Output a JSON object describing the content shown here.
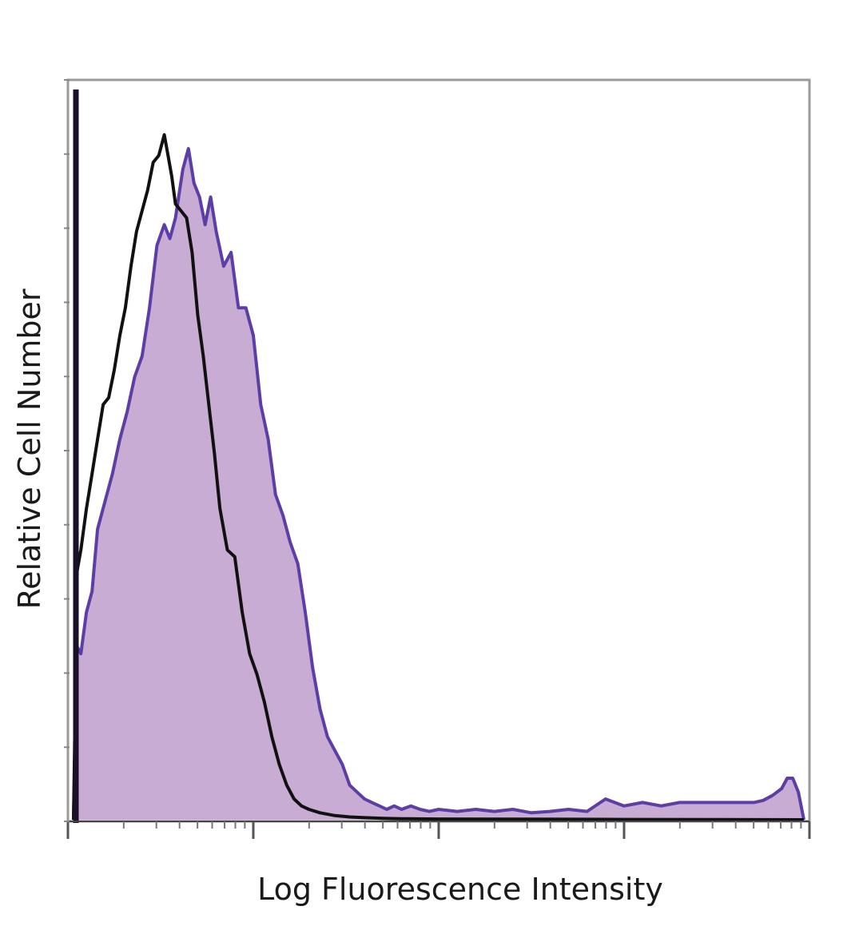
{
  "chart_data": {
    "type": "area",
    "title": "",
    "xlabel": "Log Fluorescence Intensity",
    "ylabel": "Relative Cell Number",
    "xscale": "log",
    "xlim": [
      0,
      4
    ],
    "ylim": [
      0,
      1
    ],
    "grid": false,
    "legend": "none",
    "tick_labels": "none",
    "series": [
      {
        "style": "filled",
        "fill_color": "#c8acd3",
        "line_color": "#5b3fa6",
        "x": [
          0.03,
          0.05,
          0.07,
          0.1,
          0.13,
          0.16,
          0.2,
          0.24,
          0.28,
          0.32,
          0.36,
          0.4,
          0.44,
          0.48,
          0.52,
          0.55,
          0.58,
          0.62,
          0.65,
          0.68,
          0.71,
          0.74,
          0.77,
          0.8,
          0.84,
          0.88,
          0.92,
          0.96,
          1.0,
          1.04,
          1.08,
          1.12,
          1.16,
          1.2,
          1.24,
          1.28,
          1.32,
          1.36,
          1.4,
          1.44,
          1.48,
          1.52,
          1.56,
          1.6,
          1.64,
          1.68,
          1.72,
          1.76,
          1.8,
          1.85,
          1.9,
          1.95,
          2.0,
          2.1,
          2.2,
          2.3,
          2.4,
          2.5,
          2.6,
          2.7,
          2.8,
          2.9,
          3.0,
          3.1,
          3.2,
          3.3,
          3.4,
          3.5,
          3.6,
          3.7,
          3.75,
          3.8,
          3.85,
          3.88,
          3.91,
          3.94,
          3.97
        ],
        "y": [
          0.0,
          0.25,
          0.24,
          0.3,
          0.33,
          0.42,
          0.46,
          0.5,
          0.55,
          0.59,
          0.64,
          0.67,
          0.74,
          0.83,
          0.86,
          0.84,
          0.87,
          0.94,
          0.97,
          0.92,
          0.9,
          0.86,
          0.9,
          0.85,
          0.8,
          0.82,
          0.74,
          0.74,
          0.7,
          0.6,
          0.55,
          0.47,
          0.44,
          0.4,
          0.37,
          0.3,
          0.22,
          0.16,
          0.12,
          0.1,
          0.08,
          0.05,
          0.04,
          0.03,
          0.025,
          0.02,
          0.015,
          0.02,
          0.015,
          0.02,
          0.015,
          0.012,
          0.015,
          0.012,
          0.015,
          0.012,
          0.015,
          0.01,
          0.012,
          0.015,
          0.012,
          0.03,
          0.02,
          0.025,
          0.02,
          0.025,
          0.025,
          0.025,
          0.025,
          0.025,
          0.028,
          0.035,
          0.045,
          0.06,
          0.06,
          0.04,
          0.0
        ]
      },
      {
        "style": "line",
        "line_color": "#111111",
        "x": [
          0.03,
          0.05,
          0.07,
          0.1,
          0.13,
          0.16,
          0.19,
          0.22,
          0.25,
          0.28,
          0.31,
          0.34,
          0.37,
          0.4,
          0.43,
          0.46,
          0.49,
          0.52,
          0.54,
          0.56,
          0.58,
          0.61,
          0.64,
          0.67,
          0.7,
          0.73,
          0.76,
          0.79,
          0.82,
          0.86,
          0.9,
          0.94,
          0.98,
          1.02,
          1.06,
          1.1,
          1.14,
          1.18,
          1.22,
          1.26,
          1.3,
          1.36,
          1.44,
          1.52,
          1.6,
          1.7,
          1.8,
          2.0,
          2.5,
          3.0,
          3.5,
          3.97
        ],
        "y": [
          0.0,
          0.36,
          0.39,
          0.45,
          0.5,
          0.55,
          0.6,
          0.61,
          0.65,
          0.7,
          0.74,
          0.8,
          0.85,
          0.88,
          0.91,
          0.95,
          0.96,
          0.99,
          0.96,
          0.93,
          0.89,
          0.88,
          0.87,
          0.82,
          0.73,
          0.67,
          0.6,
          0.53,
          0.45,
          0.39,
          0.38,
          0.3,
          0.24,
          0.21,
          0.17,
          0.12,
          0.08,
          0.05,
          0.03,
          0.02,
          0.015,
          0.01,
          0.006,
          0.004,
          0.003,
          0.002,
          0.0015,
          0.001,
          0.0008,
          0.0005,
          0.0003,
          0.0
        ]
      }
    ]
  }
}
